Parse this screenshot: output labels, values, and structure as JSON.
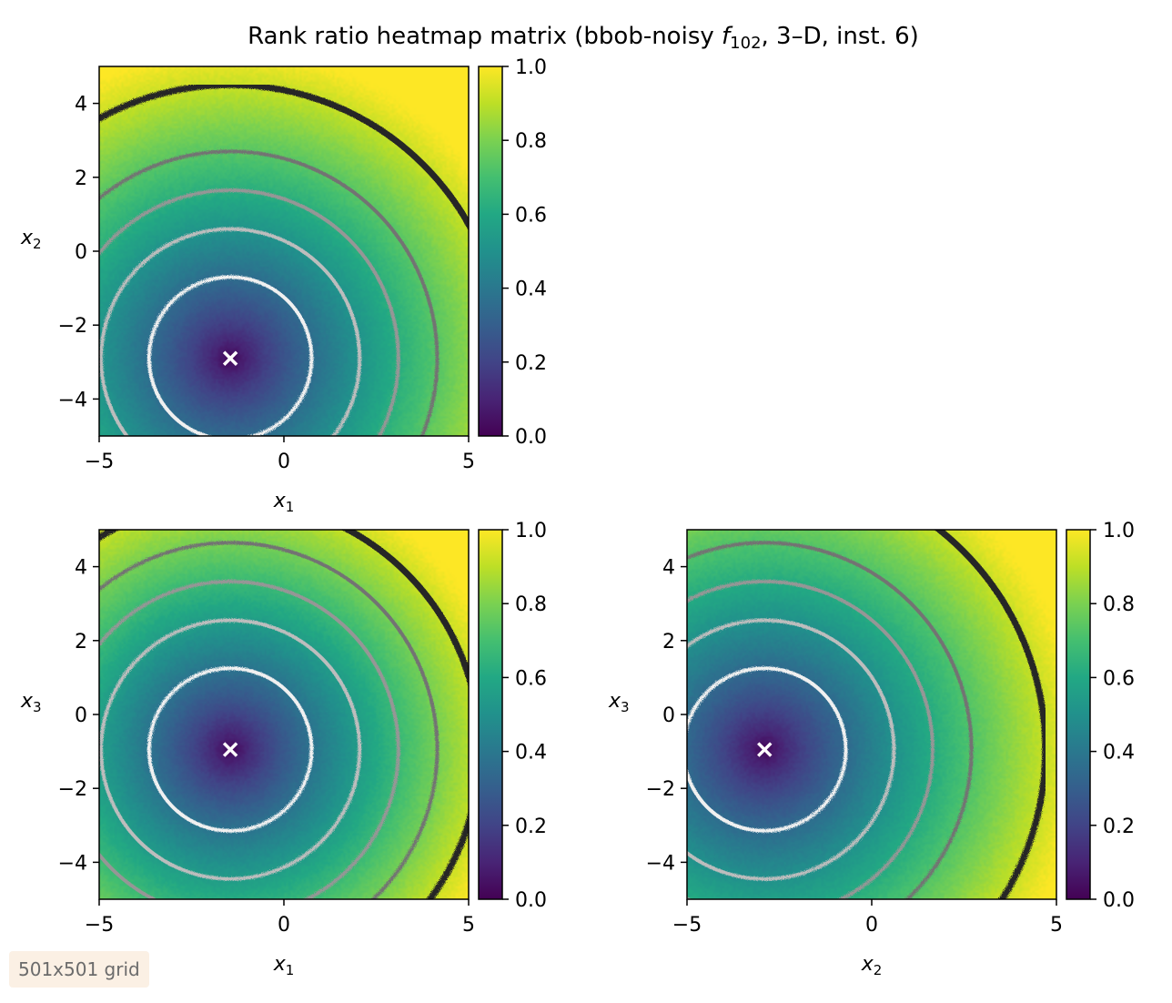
{
  "figure": {
    "title_main": "Rank ratio heatmap matrix (bbob-noisy ",
    "title_f": "f",
    "title_sub": "102",
    "title_rest": ", 3–D, inst. 6)"
  },
  "badge": {
    "text": "501x501 grid"
  },
  "colors": {
    "optimum_marker": "#ffffff",
    "contour_levels": [
      "#f0f0f0",
      "#bdbdbd",
      "#969696",
      "#737373",
      "#252525"
    ],
    "colormap": "viridis"
  },
  "chart_data": [
    {
      "type": "heatmap",
      "name": "x1-x2",
      "xlabel_var": "x",
      "xlabel_sub": "1",
      "ylabel_var": "x",
      "ylabel_sub": "2",
      "xlim": [
        -5,
        5
      ],
      "ylim": [
        -5,
        5
      ],
      "x_ticks": [
        "−5",
        "0",
        "5"
      ],
      "y_ticks": [
        "−4",
        "−2",
        "0",
        "2",
        "4"
      ],
      "x_tick_values": [
        -5,
        0,
        5
      ],
      "y_tick_values": [
        -4,
        -2,
        0,
        2,
        4
      ],
      "optimum": [
        -1.45,
        -2.9
      ],
      "contour_radii": [
        2.2,
        3.5,
        4.55,
        5.6,
        7.4
      ],
      "colorbar": {
        "range": [
          0,
          1
        ],
        "ticks": [
          "0.0",
          "0.2",
          "0.4",
          "0.6",
          "0.8",
          "1.0"
        ],
        "tick_values": [
          0,
          0.2,
          0.4,
          0.6,
          0.8,
          1.0
        ]
      }
    },
    {
      "type": "heatmap",
      "name": "x1-x3",
      "xlabel_var": "x",
      "xlabel_sub": "1",
      "ylabel_var": "x",
      "ylabel_sub": "3",
      "xlim": [
        -5,
        5
      ],
      "ylim": [
        -5,
        5
      ],
      "x_ticks": [
        "−5",
        "0",
        "5"
      ],
      "y_ticks": [
        "−4",
        "−2",
        "0",
        "2",
        "4"
      ],
      "x_tick_values": [
        -5,
        0,
        5
      ],
      "y_tick_values": [
        -4,
        -2,
        0,
        2,
        4
      ],
      "optimum": [
        -1.45,
        -0.95
      ],
      "contour_radii": [
        2.2,
        3.5,
        4.55,
        5.6,
        6.75
      ],
      "colorbar": {
        "range": [
          0,
          1
        ],
        "ticks": [
          "0.0",
          "0.2",
          "0.4",
          "0.6",
          "0.8",
          "1.0"
        ],
        "tick_values": [
          0,
          0.2,
          0.4,
          0.6,
          0.8,
          1.0
        ]
      }
    },
    {
      "type": "heatmap",
      "name": "x2-x3",
      "xlabel_var": "x",
      "xlabel_sub": "2",
      "ylabel_var": "x",
      "ylabel_sub": "3",
      "xlim": [
        -5,
        5
      ],
      "ylim": [
        -5,
        5
      ],
      "x_ticks": [
        "−5",
        "0",
        "5"
      ],
      "y_ticks": [
        "−4",
        "−2",
        "0",
        "2",
        "4"
      ],
      "x_tick_values": [
        -5,
        0,
        5
      ],
      "y_tick_values": [
        -4,
        -2,
        0,
        2,
        4
      ],
      "optimum": [
        -2.9,
        -0.95
      ],
      "contour_radii": [
        2.2,
        3.5,
        4.55,
        5.6,
        7.6
      ],
      "colorbar": {
        "range": [
          0,
          1
        ],
        "ticks": [
          "0.0",
          "0.2",
          "0.4",
          "0.6",
          "0.8",
          "1.0"
        ],
        "tick_values": [
          0,
          0.2,
          0.4,
          0.6,
          0.8,
          1.0
        ]
      }
    }
  ]
}
